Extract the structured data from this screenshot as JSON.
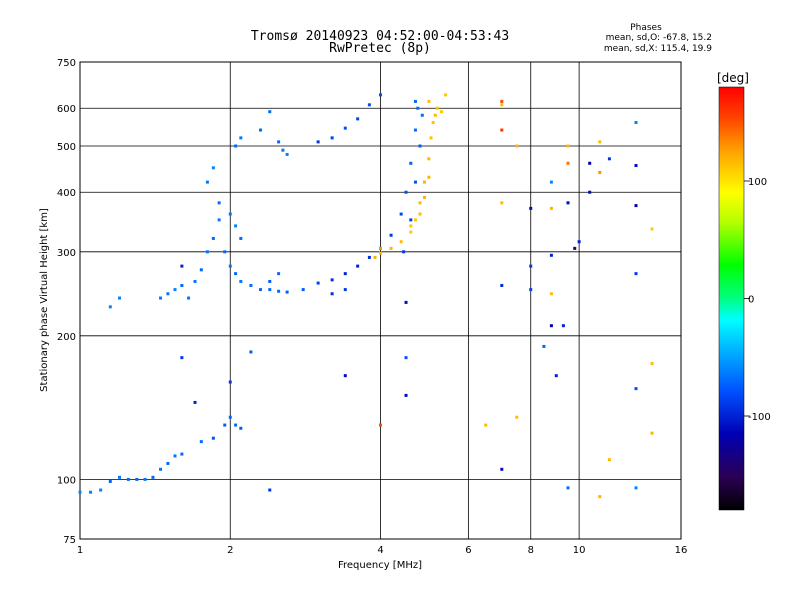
{
  "chart_data": {
    "type": "scatter",
    "title": "Tromsø 20140923 04:52:00-04:53:43",
    "subtitle": "RwPretec (8p)",
    "xlabel": "Frequency [MHz]",
    "ylabel": "Stationary phase Virtual Height [km]",
    "x_scale": "log",
    "y_scale": "log",
    "xlim": [
      1,
      16
    ],
    "ylim": [
      75,
      750
    ],
    "xticks": [
      1,
      2,
      4,
      6,
      8,
      10,
      16
    ],
    "xtick_labels": [
      "1",
      "2",
      "4",
      "6",
      "8",
      "10",
      "16"
    ],
    "yticks": [
      75,
      100,
      200,
      300,
      400,
      500,
      600,
      750
    ],
    "ytick_labels": [
      "75",
      "100",
      "200",
      "300",
      "400",
      "500",
      "600",
      "750"
    ],
    "grid": true,
    "info_box": {
      "title": "Phases",
      "line1": "mean, sd,O: -67.8, 15.2",
      "line2": "mean, sd,X: 115.4, 19.9"
    },
    "colorbar": {
      "label": "[deg]",
      "range": [
        -180,
        180
      ],
      "ticks": [
        100,
        0,
        -100
      ],
      "tick_labels": [
        "100",
        "0",
        "-100"
      ]
    },
    "series": [
      {
        "mode": "O",
        "points": [
          [
            1.0,
            94,
            -60
          ],
          [
            1.05,
            94,
            -60
          ],
          [
            1.1,
            95,
            -60
          ],
          [
            1.15,
            99,
            -70
          ],
          [
            1.2,
            101,
            -65
          ],
          [
            1.25,
            100,
            -70
          ],
          [
            1.3,
            100,
            -70
          ],
          [
            1.35,
            100,
            -65
          ],
          [
            1.4,
            101,
            -70
          ],
          [
            1.45,
            105,
            -65
          ],
          [
            1.5,
            108,
            -70
          ],
          [
            1.55,
            112,
            -65
          ],
          [
            1.6,
            113,
            -70
          ],
          [
            1.15,
            230,
            -60
          ],
          [
            1.2,
            240,
            -60
          ],
          [
            1.45,
            240,
            -65
          ],
          [
            1.5,
            245,
            -65
          ],
          [
            1.55,
            250,
            -60
          ],
          [
            1.6,
            255,
            -70
          ],
          [
            1.65,
            240,
            -65
          ],
          [
            1.7,
            260,
            -65
          ],
          [
            1.75,
            275,
            -70
          ],
          [
            1.8,
            300,
            -65
          ],
          [
            1.85,
            320,
            -70
          ],
          [
            1.9,
            350,
            -65
          ],
          [
            1.95,
            300,
            -70
          ],
          [
            2.0,
            280,
            -65
          ],
          [
            2.05,
            270,
            -70
          ],
          [
            2.1,
            260,
            -65
          ],
          [
            2.2,
            255,
            -70
          ],
          [
            2.3,
            250,
            -70
          ],
          [
            2.4,
            250,
            -70
          ],
          [
            2.5,
            248,
            -70
          ],
          [
            2.6,
            247,
            -75
          ],
          [
            2.8,
            250,
            -75
          ],
          [
            3.0,
            258,
            -85
          ],
          [
            3.2,
            262,
            -95
          ],
          [
            3.4,
            270,
            -100
          ],
          [
            3.6,
            280,
            -100
          ],
          [
            3.8,
            292,
            -95
          ],
          [
            4.0,
            305,
            -95
          ],
          [
            4.2,
            325,
            -90
          ],
          [
            4.4,
            360,
            -85
          ],
          [
            4.5,
            400,
            -80
          ],
          [
            4.6,
            460,
            -75
          ],
          [
            4.7,
            540,
            -70
          ],
          [
            4.75,
            600,
            -70
          ],
          [
            4.7,
            620,
            -70
          ],
          [
            4.45,
            300,
            -90
          ],
          [
            4.6,
            350,
            -85
          ],
          [
            4.7,
            420,
            -80
          ],
          [
            4.8,
            500,
            -75
          ],
          [
            4.85,
            580,
            -70
          ],
          [
            1.8,
            420,
            -65
          ],
          [
            1.85,
            450,
            -60
          ],
          [
            1.9,
            380,
            -70
          ],
          [
            2.0,
            360,
            -65
          ],
          [
            2.05,
            340,
            -60
          ],
          [
            2.1,
            320,
            -70
          ],
          [
            1.95,
            130,
            -75
          ],
          [
            2.0,
            135,
            -70
          ],
          [
            2.05,
            130,
            -70
          ],
          [
            2.1,
            128,
            -75
          ],
          [
            1.85,
            122,
            -80
          ],
          [
            2.05,
            500,
            -70
          ],
          [
            2.1,
            520,
            -65
          ],
          [
            2.3,
            540,
            -70
          ],
          [
            2.4,
            590,
            -70
          ],
          [
            2.5,
            510,
            -70
          ],
          [
            2.55,
            490,
            -65
          ],
          [
            2.6,
            480,
            -60
          ],
          [
            2.4,
            260,
            -75
          ],
          [
            2.5,
            270,
            -70
          ],
          [
            3.0,
            510,
            -90
          ],
          [
            3.2,
            520,
            -85
          ],
          [
            3.4,
            545,
            -80
          ],
          [
            3.6,
            570,
            -85
          ],
          [
            3.8,
            610,
            -80
          ],
          [
            4.0,
            640,
            -80
          ],
          [
            3.2,
            245,
            -95
          ],
          [
            3.4,
            250,
            -90
          ],
          [
            1.6,
            180,
            -90
          ],
          [
            1.75,
            120,
            -70
          ],
          [
            1.7,
            145,
            -100
          ],
          [
            2.0,
            160,
            -90
          ],
          [
            2.2,
            185,
            -75
          ],
          [
            2.4,
            95,
            -90
          ]
        ]
      },
      {
        "mode": "X",
        "points": [
          [
            3.9,
            292,
            120
          ],
          [
            4.0,
            298,
            115
          ],
          [
            4.2,
            305,
            118
          ],
          [
            4.4,
            315,
            115
          ],
          [
            4.6,
            330,
            110
          ],
          [
            4.7,
            350,
            112
          ],
          [
            4.8,
            380,
            115
          ],
          [
            4.9,
            420,
            118
          ],
          [
            5.0,
            470,
            116
          ],
          [
            5.05,
            520,
            114
          ],
          [
            5.1,
            560,
            112
          ],
          [
            5.15,
            580,
            116
          ],
          [
            5.0,
            430,
            118
          ],
          [
            4.9,
            390,
            120
          ],
          [
            4.8,
            360,
            115
          ],
          [
            4.6,
            340,
            112
          ],
          [
            5.2,
            600,
            113
          ],
          [
            5.4,
            640,
            110
          ],
          [
            7.0,
            610,
            115
          ],
          [
            7.5,
            500,
            118
          ],
          [
            11.0,
            510,
            115
          ],
          [
            13.0,
            560,
            112
          ],
          [
            14.0,
            335,
            110
          ],
          [
            14.0,
            175,
            115
          ],
          [
            14.0,
            125,
            118
          ],
          [
            11.0,
            92,
            120
          ],
          [
            11.5,
            110,
            116
          ],
          [
            7.5,
            135,
            114
          ],
          [
            7.0,
            380,
            115
          ],
          [
            8.8,
            370,
            118
          ],
          [
            8.8,
            245,
            115
          ],
          [
            5.0,
            620,
            114
          ],
          [
            5.3,
            590,
            110
          ],
          [
            9.5,
            500,
            118
          ],
          [
            6.5,
            130,
            116
          ],
          [
            1.6,
            280,
            -100
          ]
        ]
      },
      {
        "mode": "noise",
        "points": [
          [
            3.4,
            165,
            -110
          ],
          [
            4.0,
            305,
            130
          ],
          [
            4.5,
            180,
            -80
          ],
          [
            4.5,
            235,
            -110
          ],
          [
            7.0,
            620,
            150
          ],
          [
            7.0,
            540,
            160
          ],
          [
            7.0,
            255,
            -95
          ],
          [
            7.0,
            105,
            -110
          ],
          [
            8.0,
            370,
            -110
          ],
          [
            8.0,
            280,
            -90
          ],
          [
            8.0,
            250,
            -85
          ],
          [
            8.5,
            190,
            -70
          ],
          [
            8.8,
            420,
            -60
          ],
          [
            8.8,
            295,
            -100
          ],
          [
            8.8,
            210,
            -120
          ],
          [
            9.3,
            210,
            -100
          ],
          [
            9.5,
            460,
            140
          ],
          [
            9.5,
            380,
            -110
          ],
          [
            9.8,
            305,
            -150
          ],
          [
            10.0,
            315,
            -100
          ],
          [
            10.5,
            460,
            -120
          ],
          [
            10.5,
            400,
            -110
          ],
          [
            11.0,
            440,
            130
          ],
          [
            11.5,
            470,
            -90
          ],
          [
            13.0,
            560,
            -60
          ],
          [
            13.0,
            455,
            -110
          ],
          [
            13.0,
            375,
            -120
          ],
          [
            13.0,
            270,
            -90
          ],
          [
            13.0,
            155,
            -80
          ],
          [
            13.0,
            96,
            -60
          ],
          [
            9.5,
            96,
            -70
          ],
          [
            9.0,
            165,
            -100
          ],
          [
            4.5,
            150,
            -110
          ],
          [
            4.0,
            130,
            150
          ]
        ]
      }
    ]
  }
}
